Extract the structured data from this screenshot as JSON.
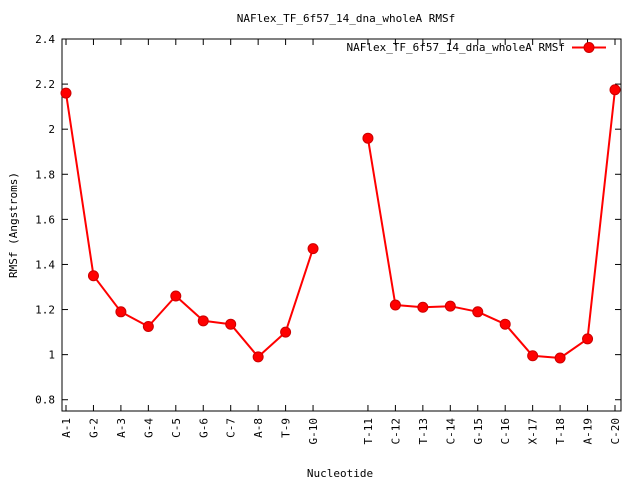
{
  "chart_data": {
    "type": "line",
    "title": "NAFlex_TF_6f57_14_dna_wholeA RMSf",
    "xlabel": "Nucleotide",
    "ylabel": "RMSf (Angstroms)",
    "ylim": [
      0.75,
      2.4
    ],
    "yticks": [
      "0.8",
      "1",
      "1.2",
      "1.4",
      "1.6",
      "1.8",
      "2",
      "2.2",
      "2.4"
    ],
    "ytick_values": [
      0.8,
      1.0,
      1.2,
      1.4,
      1.6,
      1.8,
      2.0,
      2.2,
      2.4
    ],
    "legend_placement": "top-right",
    "categories": [
      "A-1",
      "G-2",
      "A-3",
      "G-4",
      "C-5",
      "G-6",
      "C-7",
      "A-8",
      "T-9",
      "G-10",
      "",
      "T-11",
      "C-12",
      "T-13",
      "C-14",
      "G-15",
      "C-16",
      "X-17",
      "T-18",
      "A-19",
      "C-20"
    ],
    "series": [
      {
        "name": "NAFlex_TF_6f57_14_dna_wholeA RMSf",
        "color": "#ff0000",
        "values": [
          2.16,
          1.35,
          1.19,
          1.125,
          1.26,
          1.15,
          1.135,
          0.99,
          1.1,
          1.47,
          null,
          1.96,
          1.22,
          1.21,
          1.215,
          1.19,
          1.135,
          0.995,
          0.985,
          1.07,
          2.175
        ]
      }
    ]
  }
}
